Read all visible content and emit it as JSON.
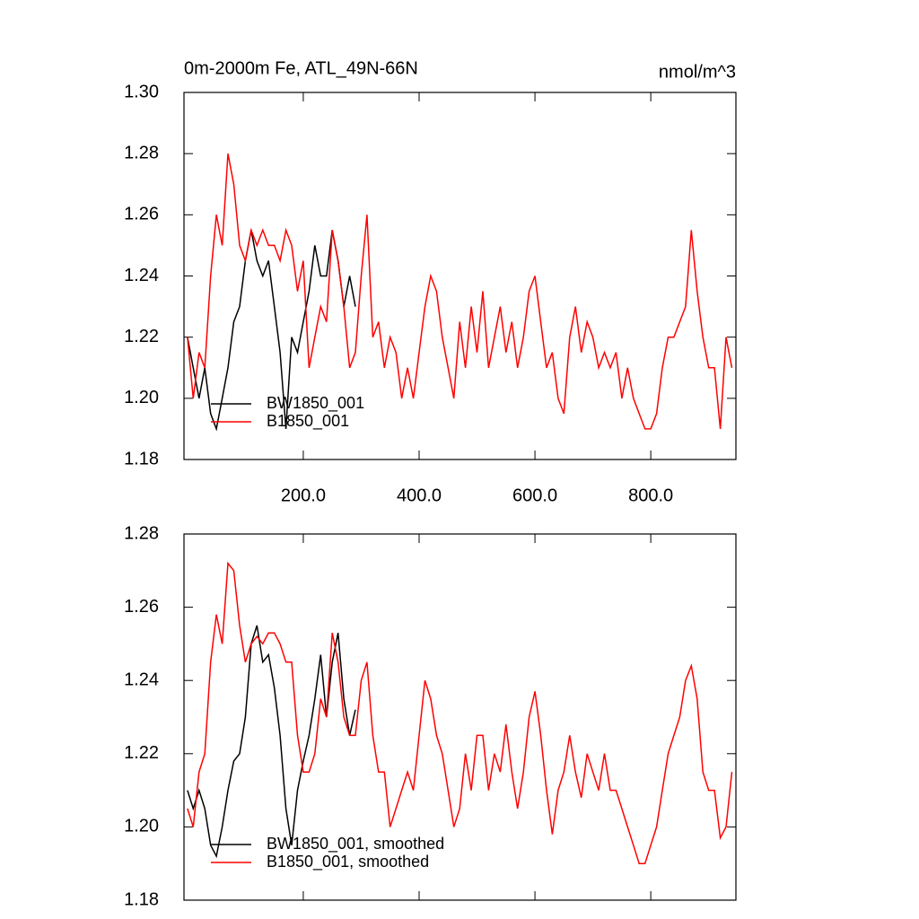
{
  "chart_data": [
    {
      "type": "line",
      "title": "0m-2000m Fe, ATL_49N-66N",
      "units": "nmol/m^3",
      "x": [
        0,
        10,
        20,
        30,
        40,
        50,
        60,
        70,
        80,
        90,
        100,
        110,
        120,
        130,
        140,
        150,
        160,
        170,
        180,
        190,
        200,
        210,
        220,
        230,
        240,
        250,
        260,
        270,
        280,
        290,
        300,
        310,
        320,
        330,
        340,
        350,
        360,
        370,
        380,
        390,
        400,
        410,
        420,
        430,
        440,
        450,
        460,
        470,
        480,
        490,
        500,
        510,
        520,
        530,
        540,
        550,
        560,
        570,
        580,
        590,
        600,
        610,
        620,
        630,
        640,
        650,
        660,
        670,
        680,
        690,
        700,
        710,
        720,
        730,
        740,
        750,
        760,
        770,
        780,
        790,
        800,
        810,
        820,
        830,
        840,
        850,
        860,
        870,
        880,
        890,
        900,
        910,
        920,
        930,
        940
      ],
      "series": [
        {
          "name": "BW1850_001",
          "color": "#000000",
          "values": [
            1.22,
            1.21,
            1.2,
            1.21,
            1.195,
            1.19,
            1.2,
            1.21,
            1.225,
            1.23,
            1.245,
            1.255,
            1.245,
            1.24,
            1.245,
            1.23,
            1.215,
            1.19,
            1.22,
            1.215,
            1.225,
            1.235,
            1.25,
            1.24,
            1.24,
            1.255,
            1.245,
            1.23,
            1.24,
            1.23,
            null,
            null,
            null,
            null,
            null,
            null,
            null,
            null,
            null,
            null,
            null,
            null,
            null,
            null,
            null,
            null,
            null,
            null,
            null,
            null,
            null,
            null,
            null,
            null,
            null,
            null,
            null,
            null,
            null,
            null,
            null,
            null,
            null,
            null,
            null,
            null,
            null,
            null,
            null,
            null,
            null,
            null,
            null,
            null,
            null,
            null,
            null,
            null,
            null,
            null,
            null,
            null,
            null,
            null,
            null,
            null,
            null,
            null,
            null,
            null,
            null,
            null,
            null,
            null,
            null
          ]
        },
        {
          "name": "B1850_001",
          "color": "#ff0000",
          "values": [
            1.22,
            1.2,
            1.215,
            1.21,
            1.24,
            1.26,
            1.25,
            1.28,
            1.27,
            1.25,
            1.245,
            1.255,
            1.25,
            1.255,
            1.25,
            1.25,
            1.245,
            1.255,
            1.25,
            1.235,
            1.245,
            1.21,
            1.22,
            1.23,
            1.225,
            1.255,
            1.245,
            1.23,
            1.21,
            1.215,
            1.24,
            1.26,
            1.22,
            1.225,
            1.21,
            1.22,
            1.215,
            1.2,
            1.21,
            1.2,
            1.215,
            1.23,
            1.24,
            1.235,
            1.22,
            1.21,
            1.2,
            1.225,
            1.21,
            1.23,
            1.215,
            1.235,
            1.21,
            1.22,
            1.23,
            1.215,
            1.225,
            1.21,
            1.22,
            1.235,
            1.24,
            1.225,
            1.21,
            1.215,
            1.2,
            1.195,
            1.22,
            1.23,
            1.215,
            1.225,
            1.22,
            1.21,
            1.215,
            1.21,
            1.215,
            1.2,
            1.21,
            1.2,
            1.195,
            1.19,
            1.19,
            1.195,
            1.21,
            1.22,
            1.22,
            1.225,
            1.23,
            1.255,
            1.235,
            1.22,
            1.21,
            1.21,
            1.19,
            1.22,
            1.21
          ]
        }
      ],
      "xlim": [
        -6,
        947
      ],
      "xticks": [
        {
          "value": 200,
          "label": "200.0"
        },
        {
          "value": 400,
          "label": "400.0"
        },
        {
          "value": 600,
          "label": "600.0"
        },
        {
          "value": 800,
          "label": "800.0"
        }
      ],
      "show_xtick_labels": true,
      "ylim": [
        1.18,
        1.3
      ],
      "yticks": [
        1.18,
        {
          "value": 1.2,
          "label": "1.20"
        },
        1.22,
        1.24,
        1.26,
        1.28,
        {
          "value": 1.3,
          "label": "1.30"
        }
      ],
      "legend": "lower left"
    },
    {
      "type": "line",
      "x": [
        0,
        10,
        20,
        30,
        40,
        50,
        60,
        70,
        80,
        90,
        100,
        110,
        120,
        130,
        140,
        150,
        160,
        170,
        180,
        190,
        200,
        210,
        220,
        230,
        240,
        250,
        260,
        270,
        280,
        290,
        300,
        310,
        320,
        330,
        340,
        350,
        360,
        370,
        380,
        390,
        400,
        410,
        420,
        430,
        440,
        450,
        460,
        470,
        480,
        490,
        500,
        510,
        520,
        530,
        540,
        550,
        560,
        570,
        580,
        590,
        600,
        610,
        620,
        630,
        640,
        650,
        660,
        670,
        680,
        690,
        700,
        710,
        720,
        730,
        740,
        750,
        760,
        770,
        780,
        790,
        800,
        810,
        820,
        830,
        840,
        850,
        860,
        870,
        880,
        890,
        900,
        910,
        920,
        930,
        940
      ],
      "series": [
        {
          "name": "BW1850_001, smoothed",
          "color": "#000000",
          "values": [
            1.21,
            1.205,
            1.21,
            1.205,
            1.195,
            1.192,
            1.2,
            1.21,
            1.218,
            1.22,
            1.23,
            1.25,
            1.255,
            1.245,
            1.247,
            1.238,
            1.225,
            1.205,
            1.195,
            1.21,
            1.218,
            1.225,
            1.235,
            1.247,
            1.23,
            1.245,
            1.253,
            1.235,
            1.225,
            1.232,
            null,
            null,
            null,
            null,
            null,
            null,
            null,
            null,
            null,
            null,
            null,
            null,
            null,
            null,
            null,
            null,
            null,
            null,
            null,
            null,
            null,
            null,
            null,
            null,
            null,
            null,
            null,
            null,
            null,
            null,
            null,
            null,
            null,
            null,
            null,
            null,
            null,
            null,
            null,
            null,
            null,
            null,
            null,
            null,
            null,
            null,
            null,
            null,
            null,
            null,
            null,
            null,
            null,
            null,
            null,
            null,
            null,
            null,
            null,
            null,
            null,
            null,
            null,
            null,
            null
          ]
        },
        {
          "name": "B1850_001, smoothed",
          "color": "#ff0000",
          "values": [
            1.205,
            1.2,
            1.215,
            1.22,
            1.245,
            1.258,
            1.25,
            1.272,
            1.27,
            1.255,
            1.245,
            1.25,
            1.252,
            1.25,
            1.253,
            1.253,
            1.25,
            1.245,
            1.245,
            1.225,
            1.215,
            1.215,
            1.22,
            1.235,
            1.23,
            1.253,
            1.245,
            1.23,
            1.225,
            1.225,
            1.24,
            1.245,
            1.225,
            1.215,
            1.215,
            1.2,
            1.205,
            1.21,
            1.215,
            1.21,
            1.225,
            1.24,
            1.235,
            1.225,
            1.22,
            1.21,
            1.2,
            1.205,
            1.22,
            1.21,
            1.225,
            1.225,
            1.21,
            1.22,
            1.215,
            1.228,
            1.215,
            1.205,
            1.215,
            1.23,
            1.237,
            1.225,
            1.21,
            1.198,
            1.21,
            1.215,
            1.225,
            1.215,
            1.208,
            1.22,
            1.215,
            1.21,
            1.22,
            1.21,
            1.21,
            1.205,
            1.2,
            1.195,
            1.19,
            1.19,
            1.195,
            1.2,
            1.21,
            1.22,
            1.225,
            1.23,
            1.24,
            1.244,
            1.235,
            1.215,
            1.21,
            1.21,
            1.197,
            1.2,
            1.215
          ]
        }
      ],
      "xlim": [
        -6,
        947
      ],
      "xticks": [
        {
          "value": 200,
          "label": "200.0"
        },
        {
          "value": 400,
          "label": "400.0"
        },
        {
          "value": 600,
          "label": "600.0"
        },
        {
          "value": 800,
          "label": "800.0"
        }
      ],
      "show_xtick_labels": false,
      "ylim": [
        1.18,
        1.28
      ],
      "yticks": [
        1.18,
        {
          "value": 1.2,
          "label": "1.20"
        },
        1.22,
        1.24,
        1.26,
        1.28
      ],
      "legend": "lower left"
    }
  ]
}
